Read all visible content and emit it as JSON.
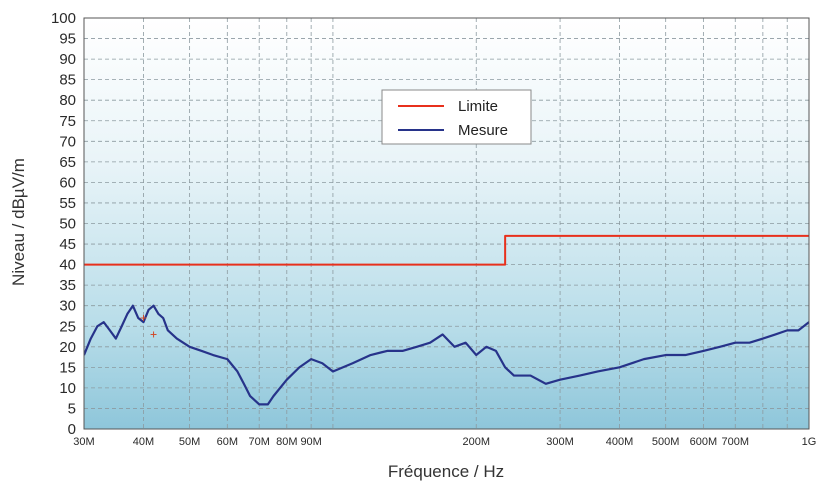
{
  "chart_data": {
    "type": "line",
    "xlabel": "Fréquence / Hz",
    "ylabel": "Niveau / dBµV/m",
    "x_scale": "log",
    "xlim_hz": [
      30000000,
      1000000000
    ],
    "ylim": [
      0,
      100
    ],
    "y_ticks": [
      0,
      5,
      10,
      15,
      20,
      25,
      30,
      35,
      40,
      45,
      50,
      55,
      60,
      65,
      70,
      75,
      80,
      85,
      90,
      95,
      100
    ],
    "x_ticks": [
      {
        "label": "30M",
        "value": 30000000
      },
      {
        "label": "40M",
        "value": 40000000
      },
      {
        "label": "50M",
        "value": 50000000
      },
      {
        "label": "60M",
        "value": 60000000
      },
      {
        "label": "70M",
        "value": 70000000
      },
      {
        "label": "80M",
        "value": 80000000
      },
      {
        "label": "90M",
        "value": 90000000
      },
      {
        "label": "200M",
        "value": 200000000
      },
      {
        "label": "300M",
        "value": 300000000
      },
      {
        "label": "400M",
        "value": 400000000
      },
      {
        "label": "500M",
        "value": 500000000
      },
      {
        "label": "600M",
        "value": 600000000
      },
      {
        "label": "700M",
        "value": 700000000
      },
      {
        "label": "1G",
        "value": 1000000000
      }
    ],
    "grid": true,
    "legend": {
      "position": "top-center"
    },
    "series": [
      {
        "name": "Limite",
        "color": "#e8301c",
        "points": [
          [
            30000000,
            40
          ],
          [
            230000000,
            40
          ],
          [
            230000000,
            47
          ],
          [
            1000000000,
            47
          ]
        ]
      },
      {
        "name": "Mesure",
        "color": "#27338a",
        "points": [
          [
            30000000,
            18
          ],
          [
            31000000,
            22
          ],
          [
            32000000,
            25
          ],
          [
            33000000,
            26
          ],
          [
            34000000,
            24
          ],
          [
            35000000,
            22
          ],
          [
            36000000,
            25
          ],
          [
            37000000,
            28
          ],
          [
            38000000,
            30
          ],
          [
            39000000,
            27
          ],
          [
            40000000,
            26
          ],
          [
            41000000,
            29
          ],
          [
            42000000,
            30
          ],
          [
            43000000,
            28
          ],
          [
            44000000,
            27
          ],
          [
            45000000,
            24
          ],
          [
            47000000,
            22
          ],
          [
            50000000,
            20
          ],
          [
            53000000,
            19
          ],
          [
            56000000,
            18
          ],
          [
            60000000,
            17
          ],
          [
            63000000,
            14
          ],
          [
            65000000,
            11
          ],
          [
            67000000,
            8
          ],
          [
            70000000,
            6
          ],
          [
            73000000,
            6
          ],
          [
            75000000,
            8
          ],
          [
            80000000,
            12
          ],
          [
            85000000,
            15
          ],
          [
            90000000,
            17
          ],
          [
            95000000,
            16
          ],
          [
            100000000,
            14
          ],
          [
            110000000,
            16
          ],
          [
            120000000,
            18
          ],
          [
            130000000,
            19
          ],
          [
            140000000,
            19
          ],
          [
            150000000,
            20
          ],
          [
            160000000,
            21
          ],
          [
            170000000,
            23
          ],
          [
            180000000,
            20
          ],
          [
            190000000,
            21
          ],
          [
            200000000,
            18
          ],
          [
            210000000,
            20
          ],
          [
            220000000,
            19
          ],
          [
            230000000,
            15
          ],
          [
            240000000,
            13
          ],
          [
            260000000,
            13
          ],
          [
            280000000,
            11
          ],
          [
            300000000,
            12
          ],
          [
            330000000,
            13
          ],
          [
            360000000,
            14
          ],
          [
            400000000,
            15
          ],
          [
            450000000,
            17
          ],
          [
            500000000,
            18
          ],
          [
            550000000,
            18
          ],
          [
            600000000,
            19
          ],
          [
            650000000,
            20
          ],
          [
            700000000,
            21
          ],
          [
            750000000,
            21
          ],
          [
            800000000,
            22
          ],
          [
            850000000,
            23
          ],
          [
            900000000,
            24
          ],
          [
            950000000,
            24
          ],
          [
            1000000000,
            26
          ]
        ]
      }
    ],
    "markers": [
      {
        "shape": "cross",
        "x": 40000000,
        "y": 27
      },
      {
        "shape": "cross",
        "x": 42000000,
        "y": 23
      }
    ]
  }
}
